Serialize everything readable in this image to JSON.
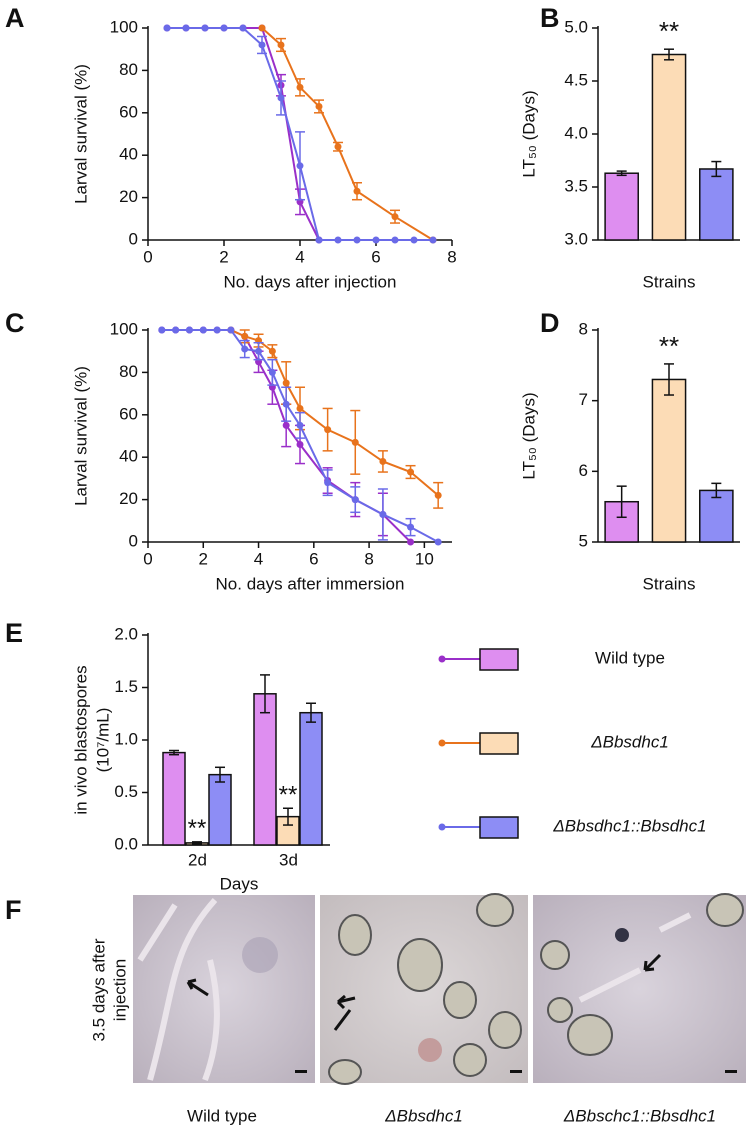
{
  "chart_data": [
    {
      "type": "line",
      "panel": "A",
      "xlabel": "No. days after injection",
      "ylabel": "Larval survival (%)",
      "xlim": [
        0,
        8
      ],
      "xticks": [
        0,
        2,
        4,
        6,
        8
      ],
      "ylim": [
        0,
        100
      ],
      "yticks": [
        0,
        20,
        40,
        60,
        80,
        100
      ],
      "series": [
        {
          "color": "#9a2fc9",
          "x": [
            0.5,
            1,
            1.5,
            2,
            2.5,
            3,
            3.5,
            4,
            4.5
          ],
          "values": [
            100,
            100,
            100,
            100,
            100,
            100,
            73,
            18,
            0
          ],
          "errors": [
            0,
            0,
            0,
            0,
            0,
            0,
            5,
            6,
            0
          ]
        },
        {
          "color": "#e8731c",
          "x": [
            3,
            3.5,
            4,
            4.5,
            5,
            5.5,
            6.5,
            7.5
          ],
          "values": [
            100,
            92,
            72,
            63,
            44,
            23,
            11,
            0
          ],
          "errors": [
            0,
            3,
            4,
            3,
            2,
            4,
            3,
            0
          ]
        },
        {
          "color": "#6a6ae8",
          "x": [
            0.5,
            1,
            1.5,
            2,
            2.5,
            3,
            3.5,
            4,
            4.5,
            5,
            5.5,
            6,
            6.5,
            7,
            7.5
          ],
          "values": [
            100,
            100,
            100,
            100,
            100,
            92,
            67,
            35,
            0,
            0,
            0,
            0,
            0,
            0,
            0
          ],
          "errors": [
            0,
            0,
            0,
            0,
            0,
            4,
            8,
            16,
            0,
            0,
            0,
            0,
            0,
            0,
            0
          ]
        }
      ]
    },
    {
      "type": "bar",
      "panel": "B",
      "xlabel": "Strains",
      "ylabel": "LT₅₀ (Days)",
      "categories": [
        null,
        null,
        null
      ],
      "values": [
        3.63,
        4.75,
        3.67
      ],
      "errors": [
        0.02,
        0.05,
        0.07
      ],
      "colors": [
        "#de8ef0",
        "#fcdcb6",
        "#8d8df5"
      ],
      "annotation": "**",
      "ylim": [
        3,
        5
      ],
      "yticks": [
        {
          "value": 3,
          "label": "3.0"
        },
        {
          "value": 3.5,
          "label": "3.5"
        },
        {
          "value": 4,
          "label": "4.0"
        },
        {
          "value": 4.5,
          "label": "4.5"
        },
        {
          "value": 5,
          "label": "5.0"
        }
      ]
    },
    {
      "type": "line",
      "panel": "C",
      "xlabel": "No. days after immersion",
      "ylabel": "Larval survival (%)",
      "xlim": [
        0,
        11
      ],
      "xticks": [
        0,
        2,
        4,
        6,
        8,
        10
      ],
      "ylim": [
        0,
        100
      ],
      "yticks": [
        0,
        20,
        40,
        60,
        80,
        100
      ],
      "series": [
        {
          "color": "#9a2fc9",
          "x": [
            0.5,
            1,
            1.5,
            2,
            2.5,
            3,
            3.5,
            4,
            4.5,
            5,
            5.5,
            6.5,
            7.5,
            8.5,
            9.5
          ],
          "values": [
            100,
            100,
            100,
            100,
            100,
            100,
            97,
            85,
            73,
            55,
            46,
            29,
            20,
            13,
            0
          ],
          "errors": [
            0,
            0,
            0,
            0,
            0,
            0,
            0,
            5,
            8,
            10,
            9,
            6,
            8,
            10,
            0
          ]
        },
        {
          "color": "#e8731c",
          "x": [
            3,
            3.5,
            4,
            4.5,
            5,
            5.5,
            6.5,
            7.5,
            8.5,
            9.5,
            10.5
          ],
          "values": [
            100,
            97,
            95,
            90,
            75,
            63,
            53,
            47,
            38,
            33,
            22
          ],
          "errors": [
            0,
            3,
            3,
            3,
            10,
            10,
            10,
            15,
            5,
            3,
            6
          ]
        },
        {
          "color": "#6a6ae8",
          "x": [
            0.5,
            1,
            1.5,
            2,
            2.5,
            3,
            3.5,
            4,
            4.5,
            5,
            5.5,
            6.5,
            7.5,
            8.5,
            9.5,
            10.5
          ],
          "values": [
            100,
            100,
            100,
            100,
            100,
            100,
            91,
            90,
            80,
            65,
            55,
            28,
            20,
            13,
            7,
            0
          ],
          "errors": [
            0,
            0,
            0,
            0,
            0,
            0,
            4,
            4,
            6,
            8,
            6,
            6,
            6,
            12,
            4,
            0
          ]
        }
      ]
    },
    {
      "type": "bar",
      "panel": "D",
      "xlabel": "Strains",
      "ylabel": "LT₅₀ (Days)",
      "categories": [
        null,
        null,
        null
      ],
      "values": [
        5.57,
        7.3,
        5.73
      ],
      "errors": [
        0.22,
        0.22,
        0.1
      ],
      "colors": [
        "#de8ef0",
        "#fcdcb6",
        "#8d8df5"
      ],
      "annotation": "**",
      "ylim": [
        5,
        8
      ],
      "yticks": [
        5,
        6,
        7,
        8
      ]
    },
    {
      "type": "grouped_bar",
      "panel": "E",
      "xlabel": "Days",
      "ylabel": [
        "in vivo blastospores",
        "(10⁷/mL)"
      ],
      "categories": [
        "2d",
        "3d"
      ],
      "annotation": "**",
      "ylim": [
        0,
        2
      ],
      "yticks": [
        {
          "value": 0,
          "label": "0.0"
        },
        {
          "value": 0.5,
          "label": "0.5"
        },
        {
          "value": 1,
          "label": "1.0"
        },
        {
          "value": 1.5,
          "label": "1.5"
        },
        {
          "value": 2,
          "label": "2.0"
        }
      ],
      "series": [
        {
          "name": "Wild type",
          "color": "#9a2fc9",
          "fill": "#de8ef0",
          "values": [
            0.88,
            1.44
          ],
          "errors": [
            0.02,
            0.18
          ]
        },
        {
          "name": "ΔBbsdhc1",
          "color": "#e8731c",
          "fill": "#fcdcb6",
          "values": [
            0.02,
            0.27
          ],
          "errors": [
            0.01,
            0.08
          ]
        },
        {
          "name": "ΔBbsdhc1::Bbsdhc1",
          "color": "#6a6ae8",
          "fill": "#8d8df5",
          "values": [
            0.67,
            1.26
          ],
          "errors": [
            0.07,
            0.09
          ]
        }
      ]
    }
  ],
  "photos": {
    "panel": "F",
    "side_label": [
      "3.5 days after",
      "injection"
    ],
    "captions": [
      "Wild type",
      "ΔBbsdhc1",
      "ΔBbschc1::Bbsdhc1"
    ]
  }
}
